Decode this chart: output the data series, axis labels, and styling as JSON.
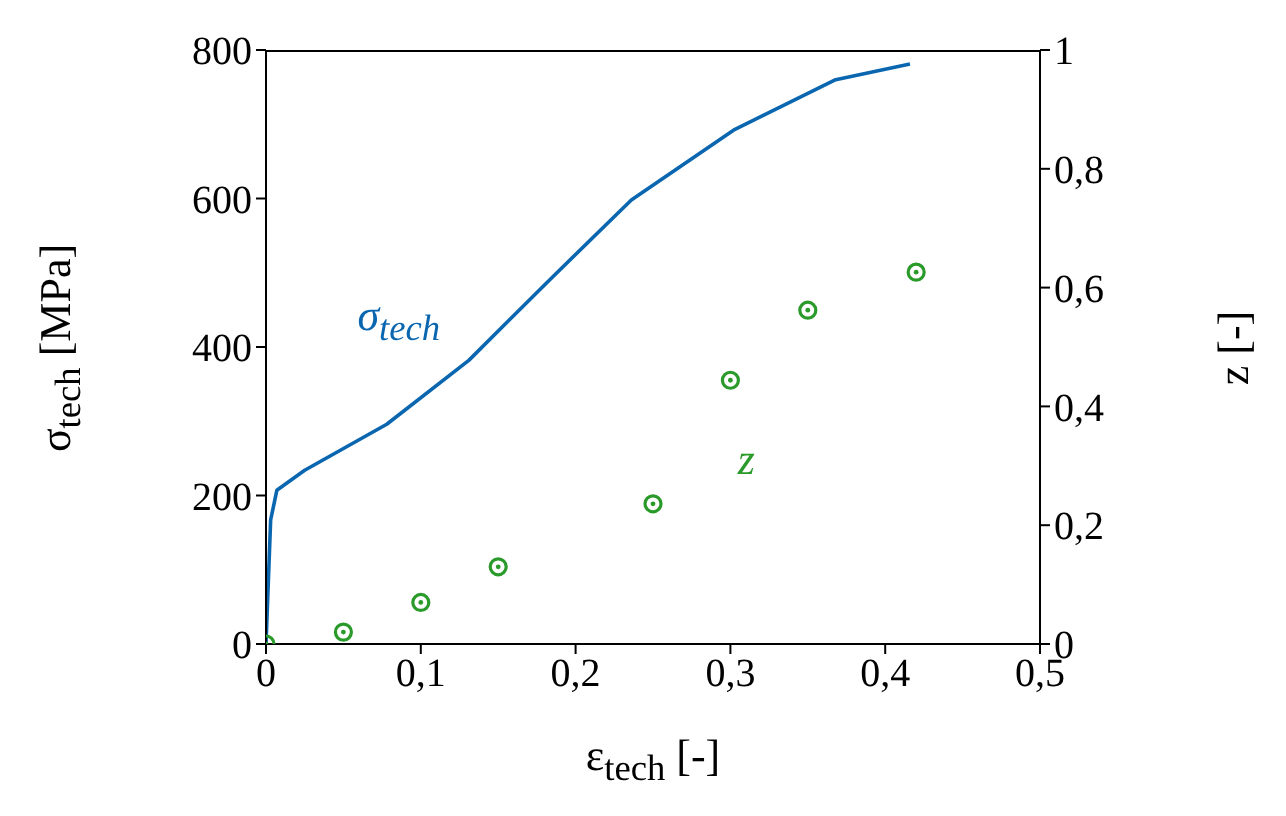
{
  "chart_data": {
    "type": "line",
    "xlabel": "ε$_{tech}$ [-]",
    "ylabel": "σ$_{tech}$ [MPa]",
    "y2label": "z [-]",
    "xlim": [
      0,
      0.5
    ],
    "xticks": [
      0,
      {
        "value": 0.1,
        "label": "0,1"
      },
      {
        "value": 0.2,
        "label": "0,2"
      },
      {
        "value": 0.3,
        "label": "0,3"
      },
      {
        "value": 0.4,
        "label": "0,4"
      },
      {
        "value": 0.5,
        "label": "0,5"
      }
    ],
    "ylim": [
      0,
      800
    ],
    "yticks": [
      0,
      200,
      400,
      600,
      800
    ],
    "y2lim": [
      0,
      1
    ],
    "y2ticks": [
      0,
      {
        "value": 0.2,
        "label": "0,2"
      },
      {
        "value": 0.4,
        "label": "0,4"
      },
      {
        "value": 0.6,
        "label": "0,6"
      },
      {
        "value": 0.8,
        "label": "0,8"
      },
      1
    ],
    "series": [
      {
        "name": "σ$_{tech}$",
        "color": "#0b66b0",
        "marker": "none",
        "x": [
          0,
          0.003,
          0.007,
          0.025,
          0.078,
          0.131,
          0.183,
          0.236,
          0.302,
          0.368,
          0.416
        ],
        "values": [
          0,
          167,
          207,
          234,
          296,
          382,
          490,
          598,
          692,
          760,
          781
        ]
      },
      {
        "name": "z",
        "type": "scatter",
        "axis": "y2",
        "color": "#2a9a2a",
        "marker": "circle",
        "x": [
          0,
          0.05,
          0.1,
          0.15,
          0.25,
          0.3,
          0.35,
          0.42
        ],
        "values": [
          0,
          0.02,
          0.07,
          0.13,
          0.236,
          0.444,
          0.562,
          0.626
        ]
      }
    ]
  }
}
